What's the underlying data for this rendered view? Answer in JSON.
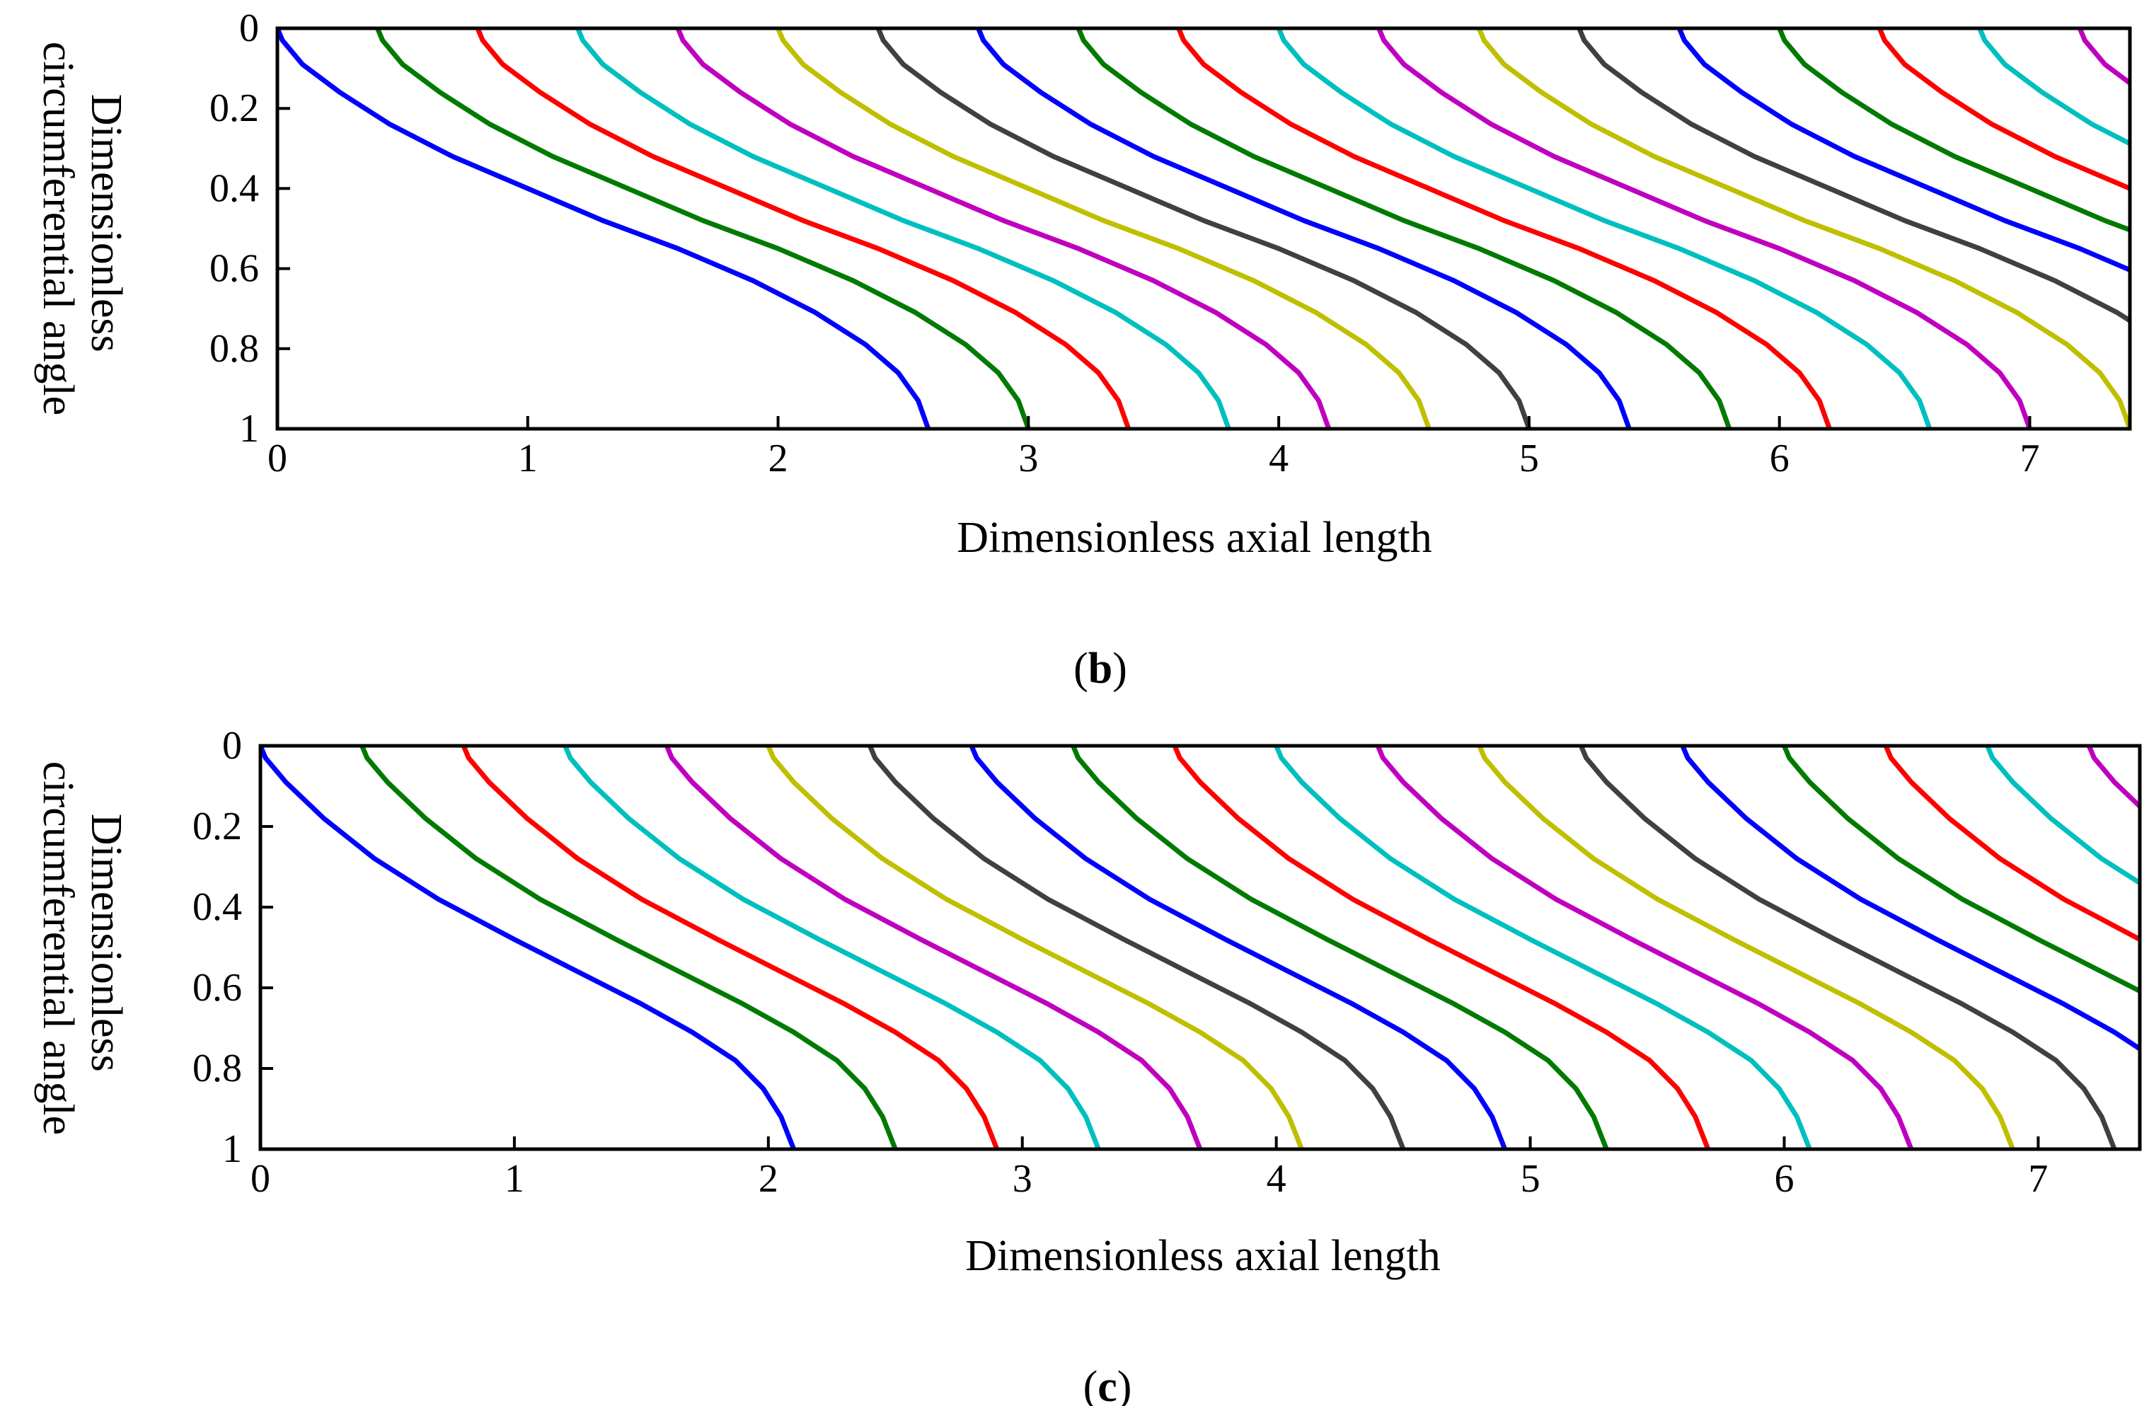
{
  "chart_data": [
    {
      "type": "line",
      "panel_label": "b",
      "xlabel": "Dimensionless axial length",
      "ylabel_lines": [
        "Dimensionless",
        "circumferential angle"
      ],
      "xlim": [
        0,
        7.4
      ],
      "ylim": [
        0,
        1
      ],
      "y_inverted": true,
      "x_ticks": [
        "0",
        "1",
        "2",
        "3",
        "4",
        "5",
        "6",
        "7"
      ],
      "y_ticks": [
        "0",
        "0.2",
        "0.4",
        "0.6",
        "0.8",
        "1"
      ],
      "grid": false,
      "legend": "none",
      "curve_shape": {
        "width": 2.6,
        "points": [
          [
            0,
            0
          ],
          [
            0.02,
            0.03
          ],
          [
            0.1,
            0.09
          ],
          [
            0.25,
            0.16
          ],
          [
            0.45,
            0.24
          ],
          [
            0.7,
            0.32
          ],
          [
            1.0,
            0.4
          ],
          [
            1.3,
            0.48
          ],
          [
            1.6,
            0.55
          ],
          [
            1.9,
            0.63
          ],
          [
            2.15,
            0.71
          ],
          [
            2.35,
            0.79
          ],
          [
            2.48,
            0.86
          ],
          [
            2.56,
            0.93
          ],
          [
            2.6,
            1.0
          ]
        ]
      },
      "series": [
        {
          "color": "#0000ff",
          "start_x": 0.0
        },
        {
          "color": "#007a00",
          "start_x": 0.4
        },
        {
          "color": "#ff0000",
          "start_x": 0.8
        },
        {
          "color": "#00bfbf",
          "start_x": 1.2
        },
        {
          "color": "#bf00bf",
          "start_x": 1.6
        },
        {
          "color": "#bfbf00",
          "start_x": 2.0
        },
        {
          "color": "#404040",
          "start_x": 2.4
        },
        {
          "color": "#0000ff",
          "start_x": 2.8
        },
        {
          "color": "#007a00",
          "start_x": 3.2
        },
        {
          "color": "#ff0000",
          "start_x": 3.6
        },
        {
          "color": "#00bfbf",
          "start_x": 4.0
        },
        {
          "color": "#bf00bf",
          "start_x": 4.4
        },
        {
          "color": "#bfbf00",
          "start_x": 4.8
        },
        {
          "color": "#404040",
          "start_x": 5.2
        },
        {
          "color": "#0000ff",
          "start_x": 5.6
        },
        {
          "color": "#007a00",
          "start_x": 6.0
        },
        {
          "color": "#ff0000",
          "start_x": 6.4
        },
        {
          "color": "#00bfbf",
          "start_x": 6.8
        },
        {
          "color": "#bf00bf",
          "start_x": 7.2
        }
      ]
    },
    {
      "type": "line",
      "panel_label": "c",
      "xlabel": "Dimensionless axial length",
      "ylabel_lines": [
        "Dimensionless",
        "circumferential angle"
      ],
      "xlim": [
        0,
        7.4
      ],
      "ylim": [
        0,
        1
      ],
      "y_inverted": true,
      "x_ticks": [
        "0",
        "1",
        "2",
        "3",
        "4",
        "5",
        "6",
        "7"
      ],
      "y_ticks": [
        "0",
        "0.2",
        "0.4",
        "0.6",
        "0.8",
        "1"
      ],
      "grid": false,
      "legend": "none",
      "curve_shape": {
        "width": 2.1,
        "points": [
          [
            0,
            0
          ],
          [
            0.02,
            0.03
          ],
          [
            0.1,
            0.09
          ],
          [
            0.25,
            0.18
          ],
          [
            0.45,
            0.28
          ],
          [
            0.7,
            0.38
          ],
          [
            1.0,
            0.48
          ],
          [
            1.25,
            0.56
          ],
          [
            1.5,
            0.64
          ],
          [
            1.7,
            0.71
          ],
          [
            1.87,
            0.78
          ],
          [
            1.98,
            0.85
          ],
          [
            2.05,
            0.92
          ],
          [
            2.1,
            1.0
          ]
        ]
      },
      "series": [
        {
          "color": "#0000ff",
          "start_x": 0.0
        },
        {
          "color": "#007a00",
          "start_x": 0.4
        },
        {
          "color": "#ff0000",
          "start_x": 0.8
        },
        {
          "color": "#00bfbf",
          "start_x": 1.2
        },
        {
          "color": "#bf00bf",
          "start_x": 1.6
        },
        {
          "color": "#bfbf00",
          "start_x": 2.0
        },
        {
          "color": "#404040",
          "start_x": 2.4
        },
        {
          "color": "#0000ff",
          "start_x": 2.8
        },
        {
          "color": "#007a00",
          "start_x": 3.2
        },
        {
          "color": "#ff0000",
          "start_x": 3.6
        },
        {
          "color": "#00bfbf",
          "start_x": 4.0
        },
        {
          "color": "#bf00bf",
          "start_x": 4.4
        },
        {
          "color": "#bfbf00",
          "start_x": 4.8
        },
        {
          "color": "#404040",
          "start_x": 5.2
        },
        {
          "color": "#0000ff",
          "start_x": 5.6
        },
        {
          "color": "#007a00",
          "start_x": 6.0
        },
        {
          "color": "#ff0000",
          "start_x": 6.4
        },
        {
          "color": "#00bfbf",
          "start_x": 6.8
        },
        {
          "color": "#bf00bf",
          "start_x": 7.2
        }
      ]
    }
  ]
}
